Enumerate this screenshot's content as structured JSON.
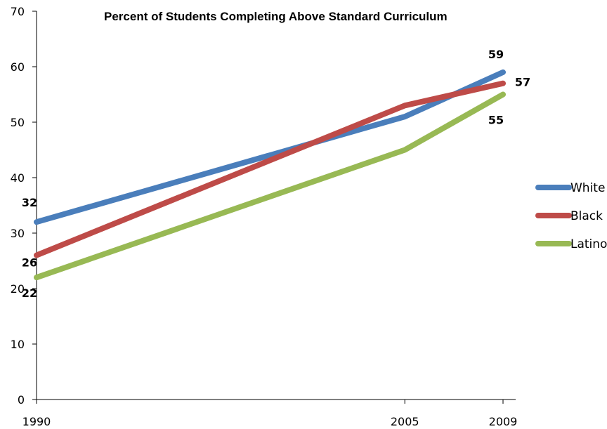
{
  "chart_data": {
    "type": "line",
    "title": "Percent of Students Completing Above Standard Curriculum",
    "xlabel": "",
    "ylabel": "",
    "x": [
      1990,
      2005,
      2009
    ],
    "x_tick_labels": [
      "1990",
      "2005",
      "2009"
    ],
    "ylim": [
      0,
      70
    ],
    "y_ticks": [
      0,
      10,
      20,
      30,
      40,
      50,
      60,
      70
    ],
    "grid": false,
    "legend_position": "right",
    "series": [
      {
        "name": "White",
        "color": "#4a7ebb",
        "values": [
          32,
          51,
          59
        ],
        "labels": [
          "32",
          "",
          "59"
        ]
      },
      {
        "name": "Black",
        "color": "#be4b48",
        "values": [
          26,
          53,
          57
        ],
        "labels": [
          "26",
          "",
          "57"
        ]
      },
      {
        "name": "Latino",
        "color": "#98b954",
        "values": [
          22,
          45,
          55
        ],
        "labels": [
          "22",
          "",
          "55"
        ]
      }
    ]
  }
}
